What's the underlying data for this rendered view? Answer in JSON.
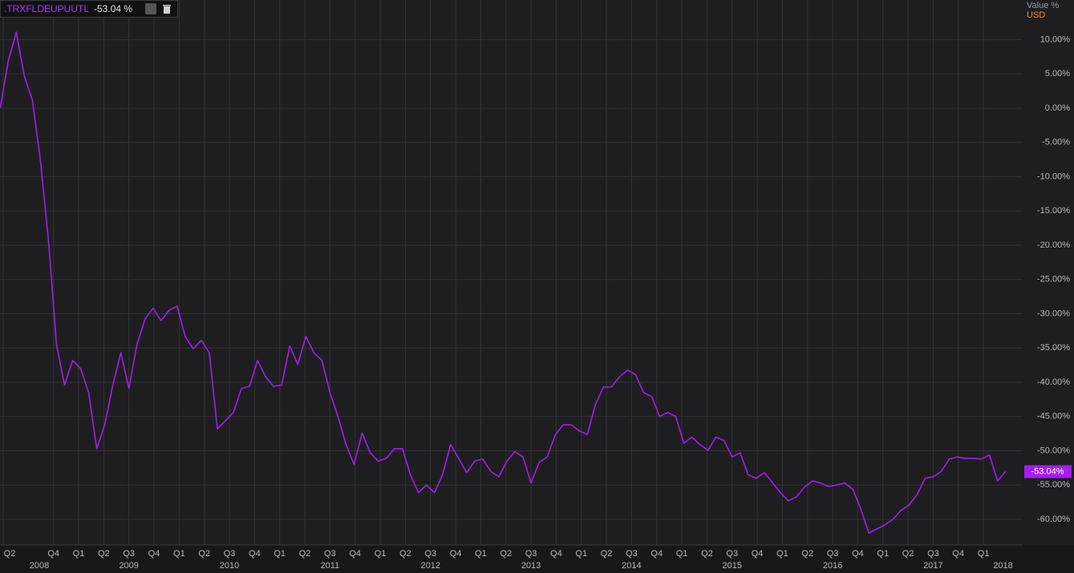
{
  "header": {
    "last_label": "-53.04 %"
  },
  "chart_data": {
    "type": "line",
    "y_axis_label": "Value %",
    "currency": "USD",
    "x": [
      2008.22,
      2008.3,
      2008.38,
      2008.46,
      2008.54,
      2008.62,
      2008.7,
      2008.78,
      2008.86,
      2008.94,
      2009.02,
      2009.1,
      2009.18,
      2009.26,
      2009.34,
      2009.42,
      2009.5,
      2009.58,
      2009.66,
      2009.74,
      2009.82,
      2009.9,
      2009.98,
      2010.06,
      2010.14,
      2010.22,
      2010.3,
      2010.38,
      2010.46,
      2010.54,
      2010.62,
      2010.7,
      2010.78,
      2010.86,
      2010.94,
      2011.02,
      2011.1,
      2011.18,
      2011.26,
      2011.34,
      2011.42,
      2011.5,
      2011.58,
      2011.66,
      2011.74,
      2011.82,
      2011.9,
      2011.98,
      2012.06,
      2012.14,
      2012.22,
      2012.3,
      2012.38,
      2012.46,
      2012.54,
      2012.62,
      2012.7,
      2012.78,
      2012.86,
      2012.94,
      2013.02,
      2013.1,
      2013.18,
      2013.26,
      2013.34,
      2013.42,
      2013.5,
      2013.58,
      2013.66,
      2013.74,
      2013.82,
      2013.9,
      2013.98,
      2014.06,
      2014.14,
      2014.22,
      2014.3,
      2014.38,
      2014.46,
      2014.54,
      2014.62,
      2014.7,
      2014.78,
      2014.86,
      2014.94,
      2015.02,
      2015.1,
      2015.18,
      2015.26,
      2015.34,
      2015.42,
      2015.5,
      2015.58,
      2015.66,
      2015.74,
      2015.82,
      2015.9,
      2015.98,
      2016.06,
      2016.14,
      2016.22,
      2016.3,
      2016.38,
      2016.46,
      2016.54,
      2016.62,
      2016.7,
      2016.78,
      2016.86,
      2016.94,
      2017.02,
      2017.1,
      2017.18,
      2017.26,
      2017.34,
      2017.42,
      2017.5,
      2017.58,
      2017.66,
      2017.74,
      2017.82,
      2017.9,
      2017.98,
      2018.06,
      2018.14,
      2018.22
    ],
    "series": [
      {
        "name": ".TRXFLDEUPUUTL",
        "color": "#a41ee8",
        "values": [
          0.0,
          6.9,
          11.1,
          4.7,
          1.2,
          -7.6,
          -19.3,
          -34.5,
          -40.4,
          -36.8,
          -38.0,
          -41.5,
          -49.7,
          -46.2,
          -40.4,
          -35.7,
          -40.9,
          -34.5,
          -30.8,
          -29.2,
          -31.0,
          -29.5,
          -28.9,
          -33.3,
          -35.1,
          -33.9,
          -35.7,
          -46.8,
          -45.6,
          -44.4,
          -40.9,
          -40.6,
          -36.8,
          -39.2,
          -40.6,
          -40.4,
          -34.7,
          -37.4,
          -33.3,
          -35.7,
          -36.8,
          -41.5,
          -45.0,
          -49.1,
          -52.0,
          -47.4,
          -50.3,
          -51.5,
          -51.1,
          -49.7,
          -49.7,
          -53.5,
          -56.1,
          -55.0,
          -56.1,
          -53.5,
          -49.1,
          -51.1,
          -53.2,
          -51.5,
          -51.2,
          -53.0,
          -53.8,
          -51.5,
          -50.1,
          -50.9,
          -54.7,
          -51.7,
          -50.9,
          -47.7,
          -46.2,
          -46.2,
          -47.1,
          -47.6,
          -43.3,
          -40.7,
          -40.7,
          -39.2,
          -38.2,
          -38.9,
          -41.5,
          -42.1,
          -45.0,
          -44.4,
          -45.0,
          -48.9,
          -48.0,
          -49.1,
          -49.9,
          -48.0,
          -48.5,
          -50.9,
          -50.3,
          -53.5,
          -54.0,
          -53.2,
          -54.6,
          -56.1,
          -57.3,
          -56.7,
          -55.3,
          -54.4,
          -54.7,
          -55.2,
          -55.0,
          -54.7,
          -55.6,
          -58.5,
          -62.0,
          -61.4,
          -60.8,
          -60.0,
          -58.7,
          -57.9,
          -56.4,
          -54.0,
          -53.8,
          -53.0,
          -51.2,
          -50.9,
          -51.1,
          -51.1,
          -51.2,
          -50.6,
          -54.4,
          -53.04
        ],
        "last_label": "-53.04%"
      }
    ],
    "xlim": [
      2008.218,
      2018.39
    ],
    "ylim": [
      -63.74,
      15.79
    ],
    "yticks": [
      {
        "value": 10,
        "label": "10.00%"
      },
      {
        "value": 5,
        "label": "5.00%"
      },
      {
        "value": 0,
        "label": "0.00%"
      },
      {
        "value": -5,
        "label": "-5.00%"
      },
      {
        "value": -10,
        "label": "-10.00%"
      },
      {
        "value": -15,
        "label": "-15.00%"
      },
      {
        "value": -20,
        "label": "-20.00%"
      },
      {
        "value": -25,
        "label": "-25.00%"
      },
      {
        "value": -30,
        "label": "-30.00%"
      },
      {
        "value": -35,
        "label": "-35.00%"
      },
      {
        "value": -40,
        "label": "-40.00%"
      },
      {
        "value": -45,
        "label": "-45.00%"
      },
      {
        "value": -50,
        "label": "-50.00%"
      },
      {
        "value": -55,
        "label": "-55.00%"
      },
      {
        "value": -60,
        "label": "-60.00%"
      }
    ],
    "xticks": [
      {
        "value": 2008.25,
        "label": "Q2"
      },
      {
        "value": 2008.75,
        "label": "Q4"
      },
      {
        "value": 2009.0,
        "label": "Q1"
      },
      {
        "value": 2009.25,
        "label": "Q2"
      },
      {
        "value": 2009.5,
        "label": "Q3"
      },
      {
        "value": 2009.75,
        "label": "Q4"
      },
      {
        "value": 2010.0,
        "label": "Q1"
      },
      {
        "value": 2010.25,
        "label": "Q2"
      },
      {
        "value": 2010.5,
        "label": "Q3"
      },
      {
        "value": 2010.75,
        "label": "Q4"
      },
      {
        "value": 2011.0,
        "label": "Q1"
      },
      {
        "value": 2011.25,
        "label": "Q2"
      },
      {
        "value": 2011.5,
        "label": "Q3"
      },
      {
        "value": 2011.75,
        "label": "Q4"
      },
      {
        "value": 2012.0,
        "label": "Q1"
      },
      {
        "value": 2012.25,
        "label": "Q2"
      },
      {
        "value": 2012.5,
        "label": "Q3"
      },
      {
        "value": 2012.75,
        "label": "Q4"
      },
      {
        "value": 2013.0,
        "label": "Q1"
      },
      {
        "value": 2013.25,
        "label": "Q2"
      },
      {
        "value": 2013.5,
        "label": "Q3"
      },
      {
        "value": 2013.75,
        "label": "Q4"
      },
      {
        "value": 2014.0,
        "label": "Q1"
      },
      {
        "value": 2014.25,
        "label": "Q2"
      },
      {
        "value": 2014.5,
        "label": "Q3"
      },
      {
        "value": 2014.75,
        "label": "Q4"
      },
      {
        "value": 2015.0,
        "label": "Q1"
      },
      {
        "value": 2015.25,
        "label": "Q2"
      },
      {
        "value": 2015.5,
        "label": "Q3"
      },
      {
        "value": 2015.75,
        "label": "Q4"
      },
      {
        "value": 2016.0,
        "label": "Q1"
      },
      {
        "value": 2016.25,
        "label": "Q2"
      },
      {
        "value": 2016.5,
        "label": "Q3"
      },
      {
        "value": 2016.75,
        "label": "Q4"
      },
      {
        "value": 2017.0,
        "label": "Q1"
      },
      {
        "value": 2017.25,
        "label": "Q2"
      },
      {
        "value": 2017.5,
        "label": "Q3"
      },
      {
        "value": 2017.75,
        "label": "Q4"
      },
      {
        "value": 2018.0,
        "label": "Q1"
      }
    ],
    "year_labels": [
      2008,
      2009,
      2010,
      2011,
      2012,
      2013,
      2014,
      2015,
      2016,
      2017,
      2018
    ],
    "grid": true
  }
}
